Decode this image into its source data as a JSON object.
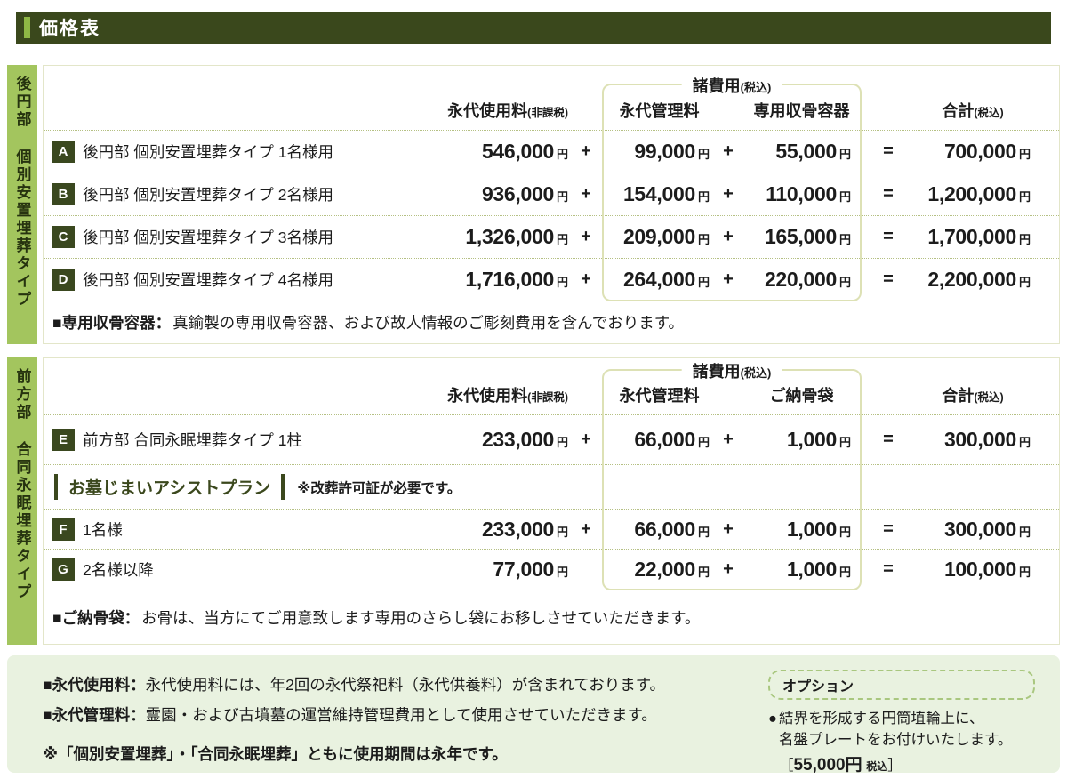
{
  "page_title": "価格表",
  "symbols": {
    "plus": "+",
    "equals": "=",
    "yen": "円"
  },
  "colors": {
    "header_bar": "#3a481c",
    "accent_green": "#8fb845",
    "side_green": "#a3c55e",
    "badge_green": "#3a481f",
    "panel_green": "#e9f2e0"
  },
  "sections": [
    {
      "side_label": "後円部 個別安置埋葬タイプ",
      "header": {
        "use_fee": "永代使用料",
        "use_fee_note": "(非課税)",
        "expenses": "諸費用",
        "expenses_note": "(税込)",
        "mgmt_fee": "永代管理料",
        "col3": "専用収骨容器",
        "total": "合計",
        "total_note": "(税込)"
      },
      "rows": [
        {
          "badge": "A",
          "label": "後円部 個別安置埋葬タイプ 1名様用",
          "use_fee": "546,000",
          "mgmt_fee": "99,000",
          "col3_fee": "55,000",
          "total": "700,000"
        },
        {
          "badge": "B",
          "label": "後円部 個別安置埋葬タイプ 2名様用",
          "use_fee": "936,000",
          "mgmt_fee": "154,000",
          "col3_fee": "110,000",
          "total": "1,200,000"
        },
        {
          "badge": "C",
          "label": "後円部 個別安置埋葬タイプ 3名様用",
          "use_fee": "1,326,000",
          "mgmt_fee": "209,000",
          "col3_fee": "165,000",
          "total": "1,700,000"
        },
        {
          "badge": "D",
          "label": "後円部 個別安置埋葬タイプ 4名様用",
          "use_fee": "1,716,000",
          "mgmt_fee": "264,000",
          "col3_fee": "220,000",
          "total": "2,200,000"
        }
      ],
      "note": {
        "label": "■専用収骨容器：",
        "text": "真鍮製の専用収骨容器、および故人情報のご彫刻費用を含んでおります。"
      }
    },
    {
      "side_label": "前方部 合同永眠埋葬タイプ",
      "header": {
        "use_fee": "永代使用料",
        "use_fee_note": "(非課税)",
        "expenses": "諸費用",
        "expenses_note": "(税込)",
        "mgmt_fee": "永代管理料",
        "col3": "ご納骨袋",
        "total": "合計",
        "total_note": "(税込)"
      },
      "rows": [
        {
          "badge": "E",
          "label": "前方部 合同永眠埋葬タイプ 1柱",
          "use_fee": "233,000",
          "mgmt_fee": "66,000",
          "col3_fee": "1,000",
          "total": "300,000"
        }
      ],
      "assist": {
        "title": "お墓じまいアシストプラン",
        "note": "※改葬許可証が必要です。"
      },
      "rows2": [
        {
          "badge": "F",
          "label": "1名様",
          "use_fee": "233,000",
          "mgmt_fee": "66,000",
          "col3_fee": "1,000",
          "total": "300,000"
        },
        {
          "badge": "G",
          "label": "2名様以降",
          "use_fee": "77,000",
          "mgmt_fee": "22,000",
          "col3_fee": "1,000",
          "total": "100,000"
        }
      ],
      "note": {
        "label": "■ご納骨袋：",
        "text": "お骨は、当方にてご用意致します専用のさらし袋にお移しさせていただきます。"
      }
    }
  ],
  "footer": {
    "notes": [
      {
        "label": "■永代使用料：",
        "text": "永代使用料には、年2回の永代祭祀料（永代供養料）が含まれております。"
      },
      {
        "label": "■永代管理料：",
        "text": "霊園・および古墳墓の運営維持管理費用として使用させていただきます。"
      }
    ],
    "caution": "※「個別安置埋葬」・「合同永眠埋葬」ともに使用期間は永年です。",
    "option": {
      "title": "オプション",
      "bullet": "●",
      "line1": "結界を形成する円筒埴輪上に、",
      "line2": "名盤プレートをお付けいたします。",
      "price_open": "［",
      "price": "55,000円",
      "price_note": "税込",
      "price_close": "］"
    }
  }
}
